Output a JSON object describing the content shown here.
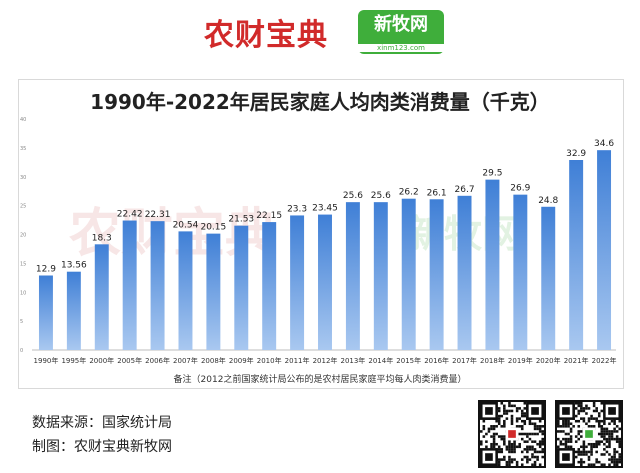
{
  "header": {
    "brand_left": "农财宝典",
    "brand_right": "新牧网",
    "brand_right_site": "xinm123.com"
  },
  "footer": {
    "source": "数据来源：国家统计局",
    "maker": "制图：农财宝典新牧网"
  },
  "chart_data": {
    "type": "bar",
    "title": "1990年-2022年居民家庭人均肉类消费量（千克）",
    "note": "备注（2012之前国家统计局公布的是农村居民家庭平均每人肉类消费量）",
    "categories": [
      "1990年",
      "1995年",
      "2000年",
      "2005年",
      "2006年",
      "2007年",
      "2008年",
      "2009年",
      "2010年",
      "2011年",
      "2012年",
      "2013年",
      "2014年",
      "2015年",
      "2016年",
      "2017年",
      "2018年",
      "2019年",
      "2020年",
      "2021年",
      "2022年"
    ],
    "values": [
      12.9,
      13.56,
      18.3,
      22.42,
      22.31,
      20.54,
      20.15,
      21.53,
      22.15,
      23.3,
      23.45,
      25.6,
      25.6,
      26.2,
      26.1,
      26.7,
      29.5,
      26.9,
      24.8,
      32.9,
      34.6
    ],
    "labels": [
      "12.9",
      "13.56",
      "18.3",
      "22.42",
      "22.31",
      "20.54",
      "20.15",
      "21.53",
      "22.15",
      "23.3",
      "23.45",
      "25.6",
      "25.6",
      "26.2",
      "26.1",
      "26.7",
      "29.5",
      "26.9",
      "24.8",
      "32.9",
      "34.6"
    ],
    "ylim": [
      0,
      40
    ],
    "yticks": [
      "0",
      "5",
      "10",
      "15",
      "20",
      "25",
      "30",
      "35",
      "40"
    ],
    "colors": {
      "bar_top": "#3f7fd6",
      "bar_bottom": "#a9c8f0",
      "label": "#222222"
    },
    "watermark_left": "农财宝典",
    "watermark_right": "新牧网"
  }
}
